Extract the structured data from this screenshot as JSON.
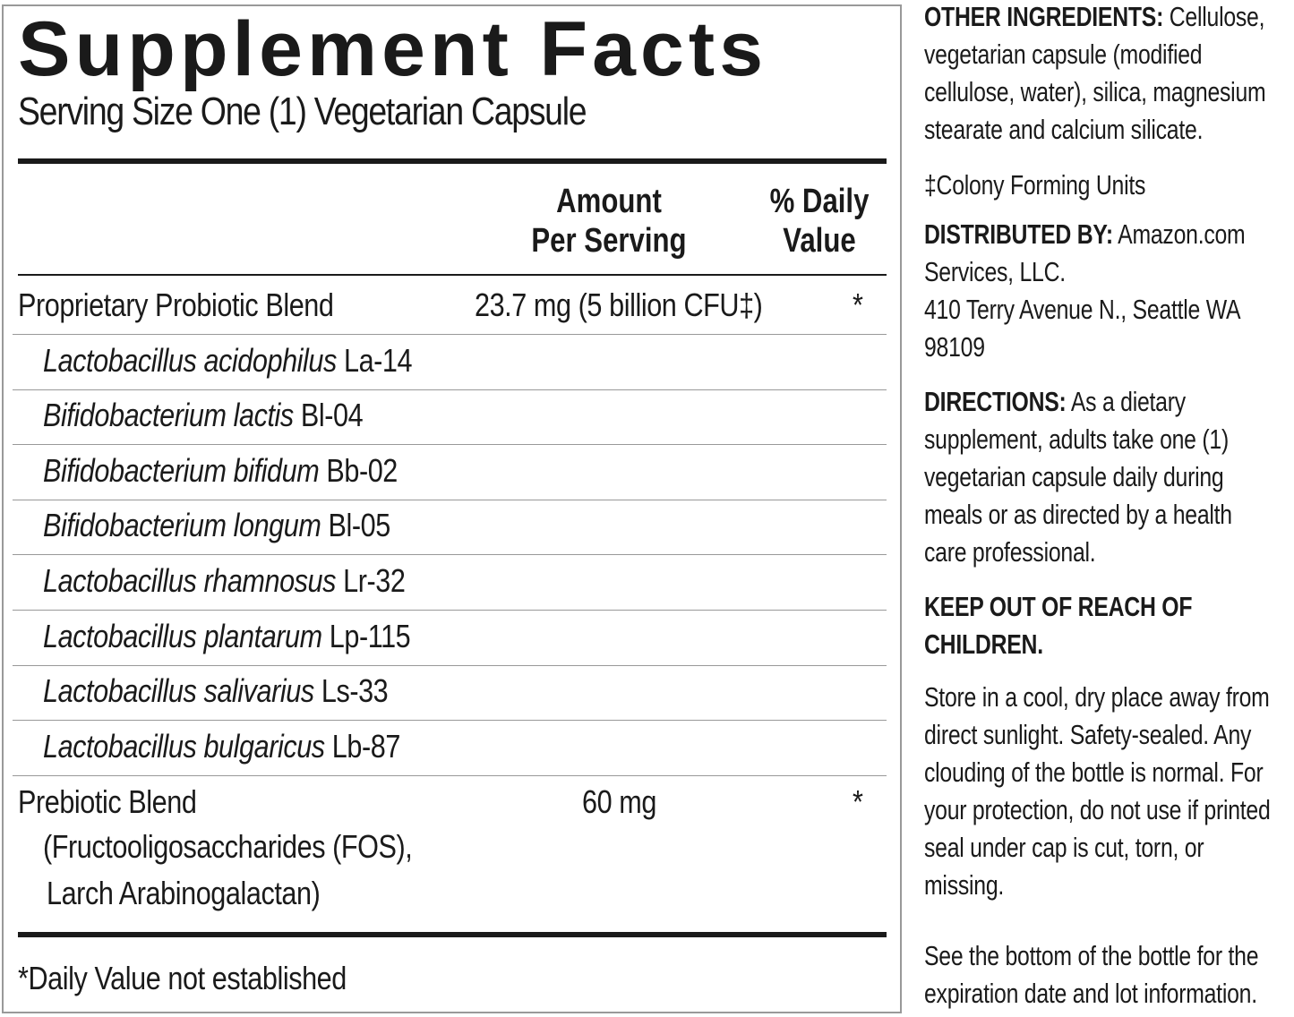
{
  "title": "Supplement Facts",
  "serving_size": "Serving Size One (1) Vegetarian Capsule",
  "columns": {
    "amount": [
      "Amount",
      "Per Serving"
    ],
    "dv": [
      "% Daily",
      "Value"
    ]
  },
  "rows": [
    {
      "name": "Proprietary Probiotic Blend",
      "amount": "23.7 mg (5 billion CFU‡)",
      "dv": "*"
    },
    {
      "species": "Lactobacillus acidophilus",
      "strain": "La-14"
    },
    {
      "species": "Bifidobacterium lactis",
      "strain": "Bl-04"
    },
    {
      "species": "Bifidobacterium bifidum",
      "strain": "Bb-02"
    },
    {
      "species": "Bifidobacterium longum",
      "strain": "Bl-05"
    },
    {
      "species": "Lactobacillus rhamnosus",
      "strain": "Lr-32"
    },
    {
      "species": "Lactobacillus plantarum",
      "strain": "Lp-115"
    },
    {
      "species": "Lactobacillus salivarius",
      "strain": "Ls-33"
    },
    {
      "species": "Lactobacillus bulgaricus",
      "strain": "Lb-87"
    },
    {
      "name": "Prebiotic Blend",
      "sub": [
        "(Fructooligosaccharides (FOS),",
        "Larch Arabinogalactan)"
      ],
      "amount": "60 mg",
      "dv": "*"
    }
  ],
  "footnote": "*Daily Value not established",
  "side": {
    "other_label": "OTHER INGREDIENTS:",
    "other_lines": [
      " Cellulose,",
      "vegetarian capsule (modified",
      "cellulose, water), silica, magnesium",
      "stearate and calcium silicate."
    ],
    "cfu": "‡Colony Forming Units",
    "dist_label": "DISTRIBUTED BY:",
    "dist_lines": [
      " Amazon.com",
      "Services, LLC.",
      "410 Terry Avenue N., Seattle WA",
      "98109"
    ],
    "dir_label": "DIRECTIONS:",
    "dir_lines": [
      " As a dietary",
      "supplement, adults take one (1)",
      "vegetarian capsule daily during",
      "meals or as directed by a health",
      "care professional."
    ],
    "keep": [
      "KEEP OUT OF REACH OF",
      "CHILDREN."
    ],
    "store": [
      "Store in a cool, dry place away from",
      "direct sunlight. Safety-sealed. Any",
      "clouding of the bottle is normal. For",
      "your protection, do not use if printed",
      "seal under cap is cut, torn, or",
      "missing."
    ],
    "see": [
      "See the bottom of the bottle for the",
      "expiration date and lot information."
    ]
  }
}
